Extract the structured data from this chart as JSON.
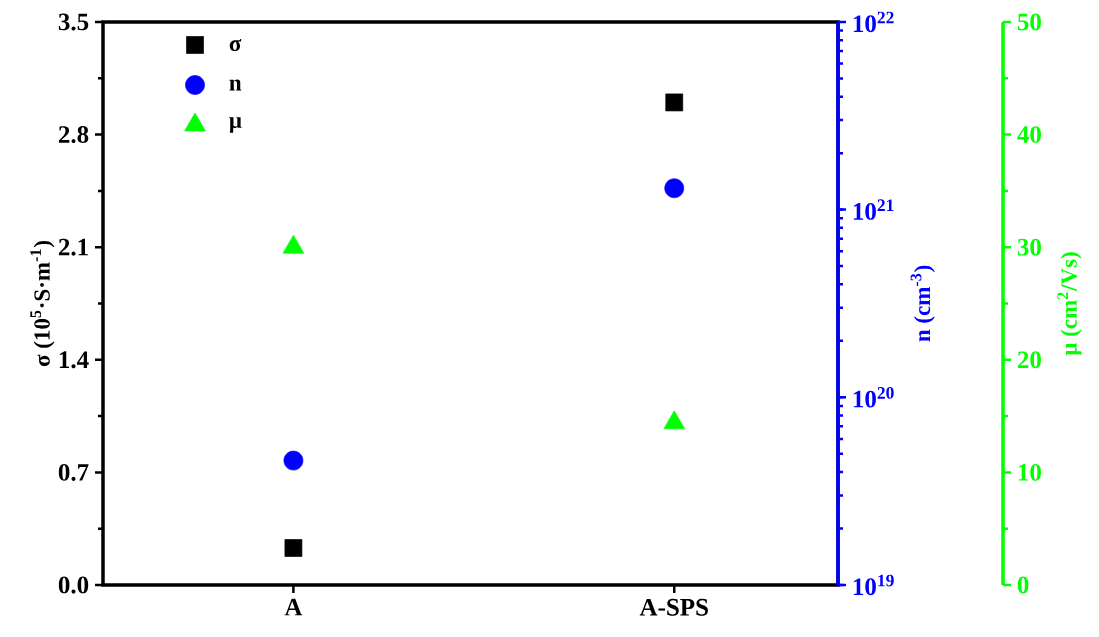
{
  "chart_data": {
    "type": "scatter",
    "categories": [
      "A",
      "A-SPS"
    ],
    "ylabel": "σ (10$^{5}$·S·m$^{-1}$)",
    "y2label": "n (cm$^{-3}$)",
    "y3label": "μ (cm$^{2}$/Vs)",
    "ylim": [
      0,
      3.5
    ],
    "yticks": [
      {
        "value": 0,
        "label": "0.0"
      },
      0.7,
      1.4,
      2.1,
      2.8,
      3.5
    ],
    "y2lim": [
      1e+19,
      1e+22
    ],
    "y2ticks": [
      {
        "value": 1e+19,
        "label": "10$^{19}$"
      },
      {
        "value": 1e+20,
        "label": "10$^{20}$"
      },
      {
        "value": 1e+21,
        "label": "10$^{21}$"
      },
      {
        "value": 1e+22,
        "label": "10$^{22}$"
      }
    ],
    "y3lim": [
      0,
      50
    ],
    "y3ticks": [
      0,
      10,
      20,
      30,
      40,
      50
    ],
    "log": "y2",
    "legend": "top left",
    "grid": false,
    "series": [
      {
        "name": "σ",
        "color": "#000000",
        "marker": "square",
        "values": [
          0.23,
          3.0
        ]
      },
      {
        "name": "n",
        "color": "#0000ff",
        "marker": "circle",
        "axis": "y2",
        "values": [
          4.6e+19,
          1.3e+21
        ]
      },
      {
        "name": "μ",
        "color": "#00ff00",
        "marker": "triangle",
        "axis": "y3",
        "values": [
          30,
          14.4
        ]
      }
    ]
  }
}
